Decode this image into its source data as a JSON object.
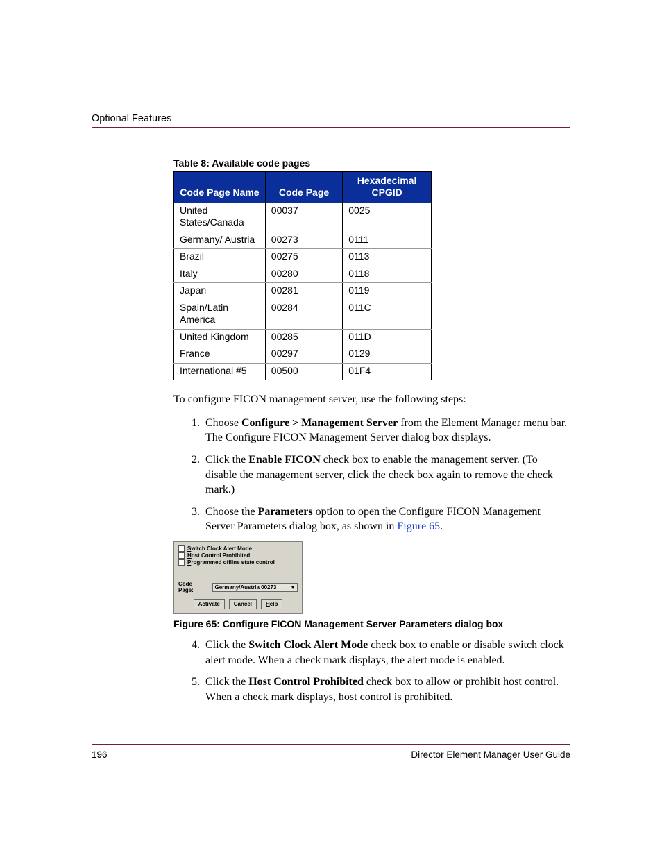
{
  "section_heading": "Optional Features",
  "table": {
    "caption": "Table 8:  Available code pages",
    "columns": [
      "Code Page Name",
      "Code Page",
      "Hexadecimal CPGID"
    ],
    "rows": [
      [
        "United States/Canada",
        "00037",
        "0025"
      ],
      [
        "Germany/ Austria",
        "00273",
        "0111"
      ],
      [
        "Brazil",
        "00275",
        "0113"
      ],
      [
        "Italy",
        "00280",
        "0118"
      ],
      [
        "Japan",
        "00281",
        "0119"
      ],
      [
        "Spain/Latin America",
        "00284",
        "011C"
      ],
      [
        "United Kingdom",
        "00285",
        "011D"
      ],
      [
        "France",
        "00297",
        "0129"
      ],
      [
        "International #5",
        "00500",
        "01F4"
      ]
    ]
  },
  "intro_text": "To configure FICON management server, use the following steps:",
  "steps": {
    "s1a": "Choose ",
    "s1b": "Configure > Management Server",
    "s1c": " from the Element Manager menu bar. The Configure FICON Management Server dialog box displays.",
    "s2a": "Click the ",
    "s2b": "Enable FICON",
    "s2c": " check box to enable the management server. (To disable the management server, click the check box again to remove the check mark.)",
    "s3a": "Choose the ",
    "s3b": "Parameters",
    "s3c": " option to open the Configure FICON Management Server Parameters dialog box, as shown in ",
    "s3d": "Figure 65",
    "s3e": ".",
    "s4a": "Click the ",
    "s4b": "Switch Clock Alert Mode",
    "s4c": " check box to enable or disable switch clock alert mode. When a check mark displays, the alert mode is enabled.",
    "s5a": "Click the ",
    "s5b": "Host Control Prohibited",
    "s5c": " check box to allow or prohibit host control. When a check mark displays, host control is prohibited."
  },
  "dialog": {
    "chk1_pre": "S",
    "chk1_rest": "witch Clock Alert Mode",
    "chk2_pre": "H",
    "chk2_rest": "ost Control Prohibited",
    "chk3_pre": "P",
    "chk3_rest": "rogrammed offline state control",
    "code_page_label": "Code Page:",
    "code_page_value": "Germany/Austria  00273",
    "btn_activate": "Activate",
    "btn_cancel": "Cancel",
    "btn_help_pre": "H",
    "btn_help_rest": "elp"
  },
  "figure_caption": "Figure 65:  Configure FICON Management Server Parameters dialog box",
  "footer": {
    "page_number": "196",
    "doc_title": "Director Element Manager User Guide"
  },
  "colors": {
    "rule": "#7a1a3a",
    "table_header_bg": "#0a2f9a",
    "link": "#1a3fd6"
  }
}
